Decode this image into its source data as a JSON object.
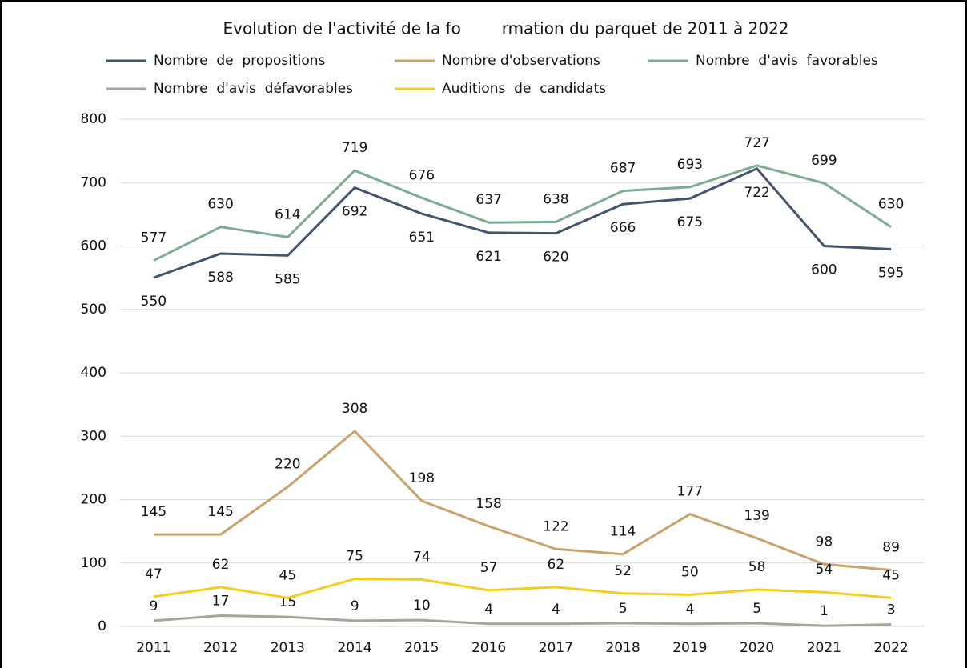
{
  "chart_data": {
    "type": "line",
    "title": "Evolution de l'activité de la fo        rmation du parquet de 2011 à 2022",
    "categories": [
      "2011",
      "2012",
      "2013",
      "2014",
      "2015",
      "2016",
      "2017",
      "2018",
      "2019",
      "2020",
      "2021",
      "2022"
    ],
    "series": [
      {
        "name": "Nombre  de  propositions",
        "color": "#44546a",
        "values": [
          550,
          588,
          585,
          692,
          651,
          621,
          620,
          666,
          675,
          722,
          600,
          595
        ]
      },
      {
        "name": "Nombre d'observations",
        "color": "#c9a26e",
        "values": [
          145,
          145,
          220,
          308,
          198,
          158,
          122,
          114,
          177,
          139,
          98,
          89
        ]
      },
      {
        "name": "Nombre  d'avis  favorables",
        "color": "#7fab93",
        "values": [
          577,
          630,
          614,
          719,
          676,
          637,
          638,
          687,
          693,
          727,
          699,
          630
        ]
      },
      {
        "name": "Nombre  d'avis  défavorables",
        "color": "#a5a59a",
        "values": [
          9,
          17,
          15,
          9,
          10,
          4,
          4,
          5,
          4,
          5,
          1,
          3
        ]
      },
      {
        "name": "Auditions  de  candidats",
        "color": "#f5cd1f",
        "values": [
          47,
          62,
          45,
          75,
          74,
          57,
          62,
          52,
          50,
          58,
          54,
          45
        ]
      }
    ],
    "ylim": [
      0,
      800
    ],
    "yticks": [
      0,
      100,
      200,
      300,
      400,
      500,
      600,
      700,
      800
    ],
    "grid": true
  }
}
